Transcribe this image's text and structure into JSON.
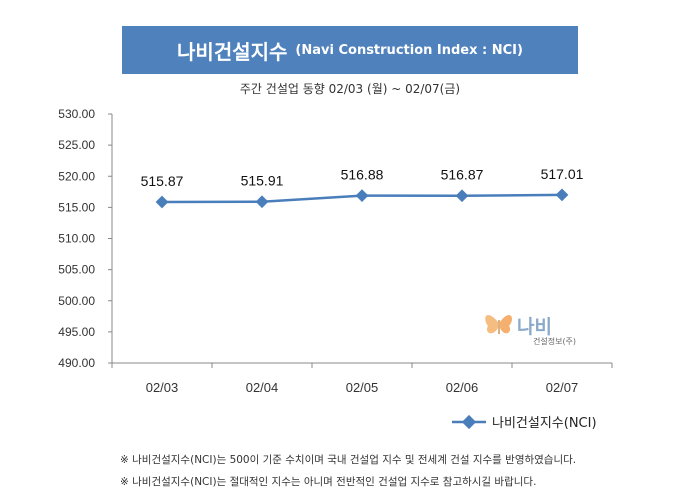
{
  "header": {
    "title": "나비건설지수",
    "title_en": "(Navi Construction Index : NCI)",
    "subtitle": "주간 건설업 동향 02/03 (월) ~ 02/07(금)"
  },
  "chart_data": {
    "type": "line",
    "title": "나비건설지수 (Navi Construction Index : NCI)",
    "subtitle": "주간 건설업 동향 02/03 (월) ~ 02/07(금)",
    "categories": [
      "02/03",
      "02/04",
      "02/05",
      "02/06",
      "02/07"
    ],
    "series": [
      {
        "name": "나비건설지수(NCI)",
        "values": [
          515.87,
          515.91,
          516.88,
          516.87,
          517.01
        ]
      }
    ],
    "data_labels": [
      "515.87",
      "515.91",
      "516.88",
      "516.87",
      "517.01"
    ],
    "y_ticks": [
      "530.00",
      "525.00",
      "520.00",
      "515.00",
      "510.00",
      "505.00",
      "500.00",
      "495.00",
      "490.00"
    ],
    "ylim": [
      490,
      530
    ],
    "grid": false,
    "legend": "bottom-right",
    "color": "#4a7ebb"
  },
  "logo": {
    "name": "나비",
    "sub": "건설정보(주)",
    "icon": "butterfly-icon"
  },
  "notes": [
    "※ 나비건설지수(NCI)는 500이 기준 수치이며 국내 건설업 지수 및 전세계 건설 지수를 반영하였습니다.",
    "※ 나비건설지수(NCI)는 절대적인 지수는 아니며 전반적인 건설업 지수로 참고하시길 바랍니다."
  ]
}
